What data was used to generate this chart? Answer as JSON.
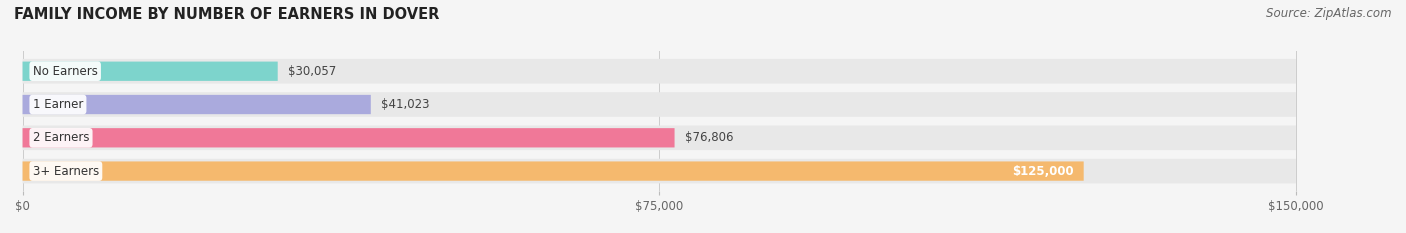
{
  "title": "FAMILY INCOME BY NUMBER OF EARNERS IN DOVER",
  "source": "Source: ZipAtlas.com",
  "categories": [
    "No Earners",
    "1 Earner",
    "2 Earners",
    "3+ Earners"
  ],
  "values": [
    30057,
    41023,
    76806,
    125000
  ],
  "bar_colors": [
    "#7dd4cc",
    "#aaaadd",
    "#f07898",
    "#f5b96e"
  ],
  "value_labels": [
    "$30,057",
    "$41,023",
    "$76,806",
    "$125,000"
  ],
  "value_inside": [
    false,
    false,
    false,
    true
  ],
  "xlim": [
    0,
    150000
  ],
  "xticks": [
    0,
    75000,
    150000
  ],
  "xticklabels": [
    "$0",
    "$75,000",
    "$150,000"
  ],
  "background_color": "#f5f5f5",
  "bar_bg_color": "#e8e8e8",
  "title_fontsize": 10.5,
  "source_fontsize": 8.5,
  "label_fontsize": 8.5,
  "value_fontsize": 8.5
}
